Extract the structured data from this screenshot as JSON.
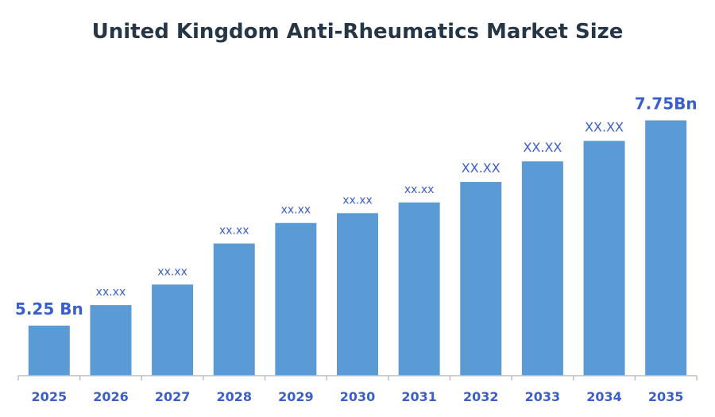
{
  "chart_data": {
    "type": "bar",
    "title": "United Kingdom Anti-Rheumatics Market Size",
    "xlabel": "",
    "ylabel": "",
    "categories": [
      "2025",
      "2026",
      "2027",
      "2028",
      "2029",
      "2030",
      "2031",
      "2032",
      "2033",
      "2034",
      "2035"
    ],
    "values": [
      5.25,
      5.5,
      5.75,
      6.25,
      6.5,
      6.62,
      6.75,
      7.0,
      7.25,
      7.5,
      7.75
    ],
    "data_labels": [
      "5.25 Bn",
      "xx.xx",
      "xx.xx",
      "xx.xx",
      "xx.xx",
      "xx.xx",
      "xx.xx",
      "XX.XX",
      "XX.XX",
      "XX.XX",
      "7.75Bn"
    ],
    "ylim": [
      4.64,
      8.2
    ],
    "grid": false,
    "legend": "none",
    "colors": {
      "bar": "#5b9bd5",
      "label": "#3a5fcd",
      "title": "#253746",
      "axis": "#bfbfbf"
    }
  }
}
